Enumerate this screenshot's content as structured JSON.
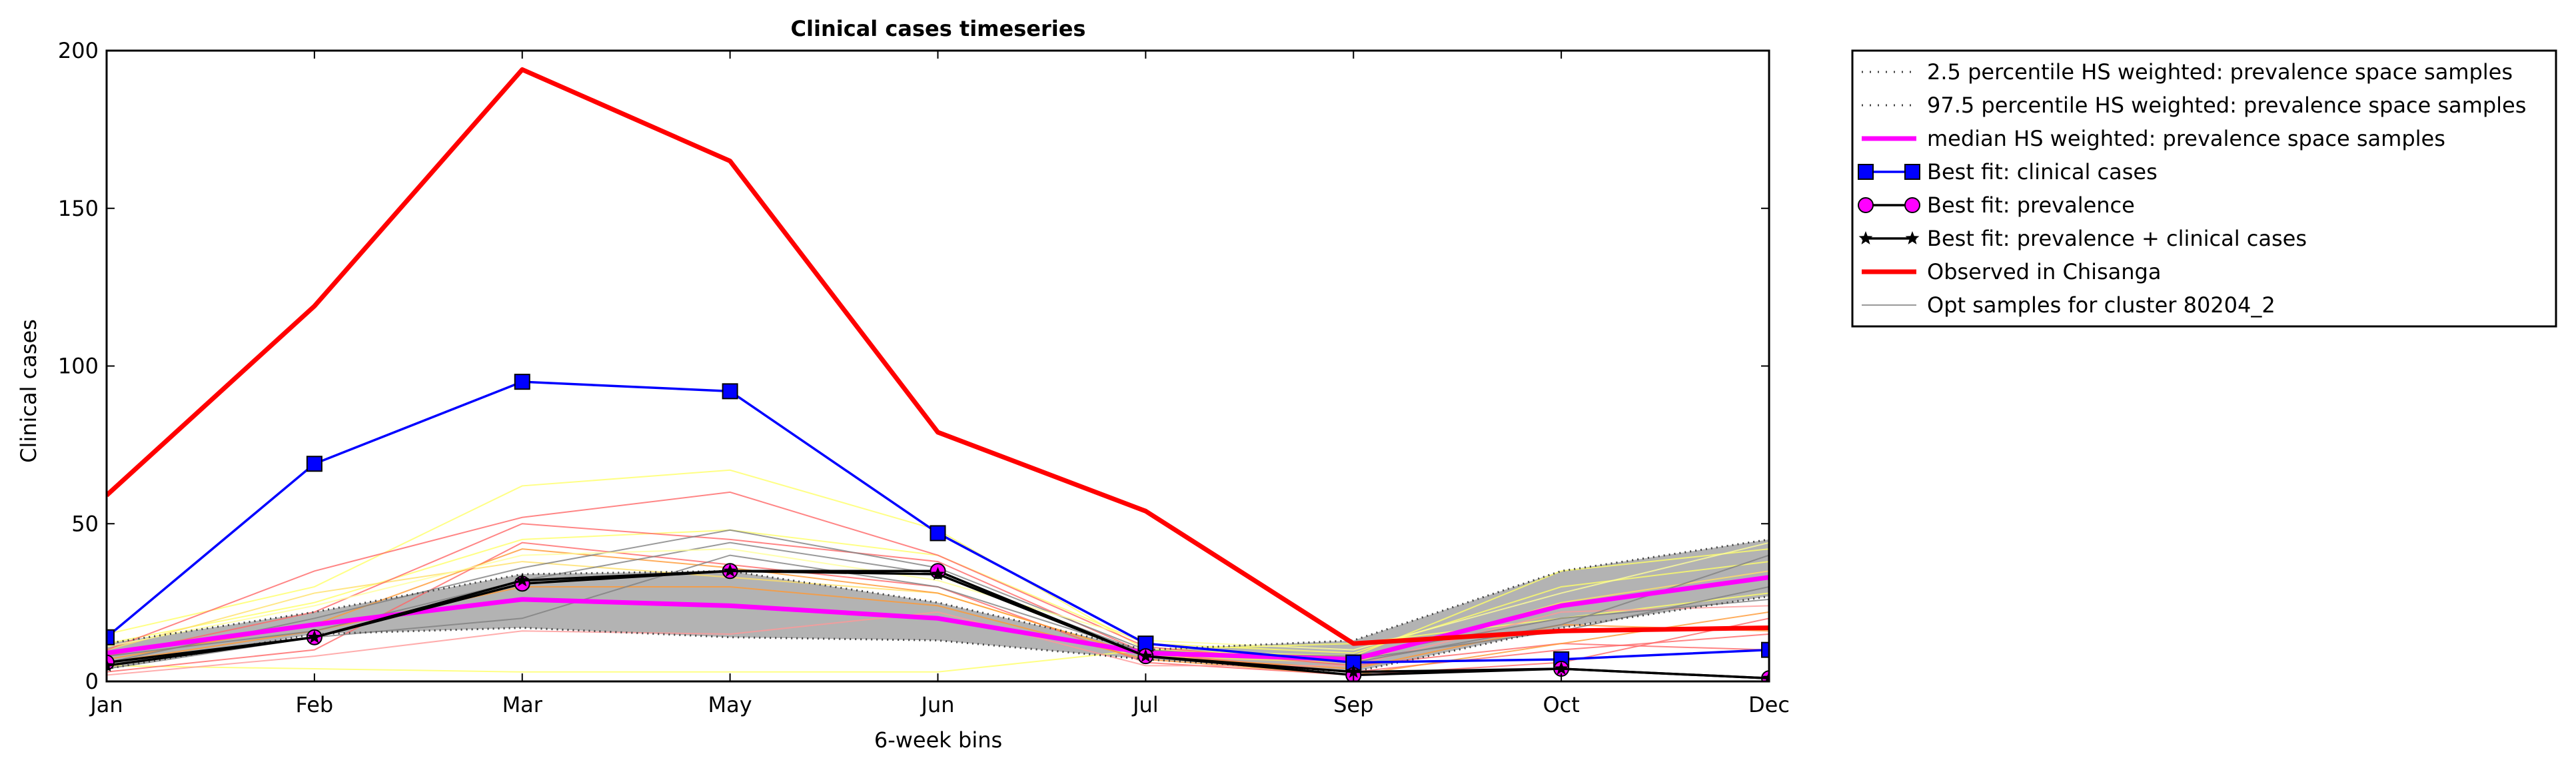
{
  "chart_data": {
    "type": "line",
    "title": "Clinical cases timeseries",
    "xlabel": "6-week bins",
    "ylabel": "Clinical cases",
    "categories": [
      "Jan",
      "Feb",
      "Mar",
      "May",
      "Jun",
      "Jul",
      "Sep",
      "Oct",
      "Dec"
    ],
    "ylim": [
      0,
      200
    ],
    "yticks": [
      0,
      50,
      100,
      150,
      200
    ],
    "grid": false,
    "legend_position": "outside-top-right",
    "band": {
      "lower": [
        4,
        15,
        17,
        14,
        13,
        7,
        3,
        17,
        27
      ],
      "upper": [
        12,
        22,
        34,
        35,
        25,
        10,
        13,
        35,
        45
      ],
      "color": "#b3b3b3"
    },
    "background_samples": [
      {
        "color": "#ffff66",
        "values": [
          15,
          30,
          62,
          67,
          48,
          10,
          8,
          35,
          42
        ]
      },
      {
        "color": "#ffff66",
        "values": [
          12,
          25,
          45,
          48,
          40,
          12,
          9,
          30,
          38
        ]
      },
      {
        "color": "#ffff66",
        "values": [
          5,
          4,
          3,
          3,
          3,
          10,
          12,
          20,
          28
        ]
      },
      {
        "color": "#ffe066",
        "values": [
          10,
          28,
          38,
          33,
          28,
          8,
          6,
          25,
          35
        ]
      },
      {
        "color": "#ff6666",
        "values": [
          10,
          35,
          52,
          60,
          40,
          11,
          5,
          12,
          10
        ]
      },
      {
        "color": "#ff6666",
        "values": [
          8,
          22,
          50,
          45,
          38,
          9,
          3,
          10,
          15
        ]
      },
      {
        "color": "#ff6666",
        "values": [
          3,
          10,
          44,
          37,
          30,
          6,
          2,
          6,
          20
        ]
      },
      {
        "color": "#ff9933",
        "values": [
          7,
          18,
          42,
          36,
          28,
          8,
          4,
          18,
          16
        ]
      },
      {
        "color": "#ff9933",
        "values": [
          6,
          16,
          30,
          30,
          24,
          7,
          2,
          12,
          22
        ]
      },
      {
        "color": "#ff9999",
        "values": [
          2,
          8,
          16,
          15,
          22,
          5,
          5,
          22,
          24
        ]
      },
      {
        "color": "#808080",
        "values": [
          6,
          20,
          36,
          48,
          36,
          10,
          6,
          18,
          40
        ]
      },
      {
        "color": "#808080",
        "values": [
          4,
          14,
          20,
          40,
          30,
          9,
          7,
          16,
          30
        ]
      },
      {
        "color": "#808080",
        "values": [
          8,
          16,
          32,
          44,
          34,
          9,
          8,
          20,
          26
        ]
      },
      {
        "color": "#ffff99",
        "values": [
          11,
          24,
          40,
          42,
          32,
          13,
          10,
          28,
          44
        ]
      }
    ],
    "series": [
      {
        "name": "2.5 percentile HS weighted: prevalence space samples",
        "style": "dotted",
        "color": "#444444",
        "values": [
          4,
          15,
          17,
          14,
          13,
          7,
          3,
          17,
          27
        ]
      },
      {
        "name": "97.5 percentile HS weighted: prevalence space samples",
        "style": "dotted",
        "color": "#444444",
        "values": [
          12,
          22,
          34,
          35,
          25,
          10,
          13,
          35,
          45
        ]
      },
      {
        "name": "median HS weighted: prevalence space samples",
        "style": "solid-thick",
        "color": "#ff00ff",
        "values": [
          9,
          18,
          26,
          24,
          20,
          9,
          7,
          24,
          33
        ]
      },
      {
        "name": "Best fit: clinical cases",
        "style": "square-markers",
        "color": "#0000ff",
        "values": [
          14,
          69,
          95,
          92,
          47,
          12,
          6,
          7,
          10
        ]
      },
      {
        "name": "Best fit: prevalence",
        "style": "circle-markers",
        "color": "#ff00ff",
        "line_color": "#000000",
        "values": [
          6,
          14,
          31,
          35,
          35,
          8,
          2,
          4,
          1
        ]
      },
      {
        "name": "Best fit: prevalence + clinical cases",
        "style": "star-markers",
        "color": "#000000",
        "values": [
          5,
          14,
          32,
          35,
          34,
          8,
          3,
          4,
          1
        ]
      },
      {
        "name": "Observed in Chisanga",
        "style": "solid-thick",
        "color": "#ff0000",
        "values": [
          59,
          119,
          194,
          165,
          79,
          54,
          12,
          16,
          17
        ]
      },
      {
        "name": "Opt samples for cluster 80204_2",
        "style": "thin",
        "color": "#999999",
        "values": null
      }
    ]
  }
}
